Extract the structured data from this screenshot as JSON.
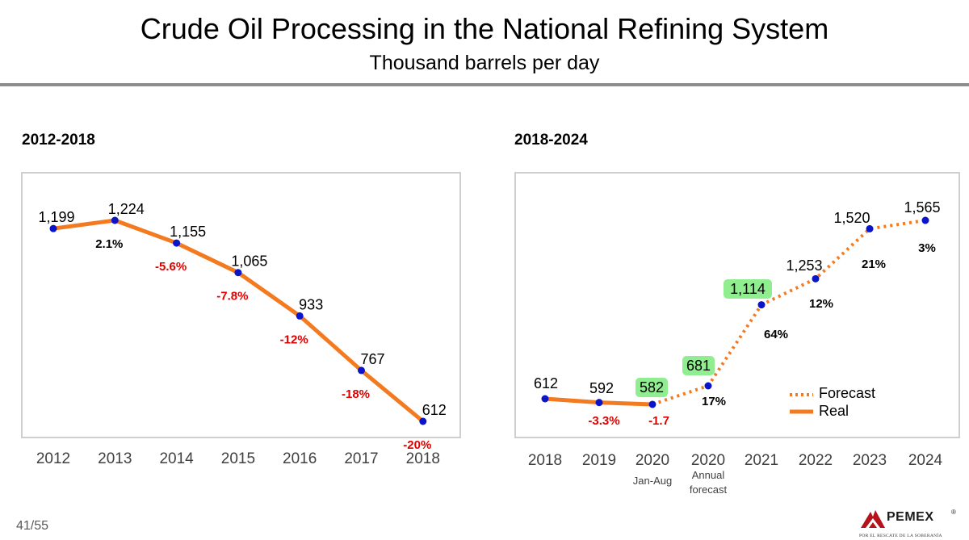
{
  "header": {
    "title": "Crude Oil Processing in the National Refining System",
    "subtitle": "Thousand barrels per day"
  },
  "footer": {
    "page_number": "41/55",
    "logo_text": "PEMEX",
    "logo_registered": "®",
    "logo_tagline": "POR EL RESCATE DE LA SOBERANÍA"
  },
  "colors": {
    "line": "#F47A20",
    "marker": "#0A14C8",
    "negative": "#E00000",
    "highlight": "#90EE90"
  },
  "chart_data": [
    {
      "type": "line",
      "title": "2012-2018",
      "categories": [
        "2012",
        "2013",
        "2014",
        "2015",
        "2016",
        "2017",
        "2018"
      ],
      "series": [
        {
          "name": "Real",
          "values": [
            1199,
            1224,
            1155,
            1065,
            933,
            767,
            612
          ],
          "value_labels": [
            "1,199",
            "1,224",
            "1,155",
            "1,065",
            "933",
            "767",
            "612"
          ]
        }
      ],
      "change_labels": [
        null,
        "2.1%",
        "-5.6%",
        "-7.8%",
        "-12%",
        "-18%",
        "-20%"
      ],
      "ylim": [
        0,
        1400
      ]
    },
    {
      "type": "line",
      "title": "2018-2024",
      "categories": [
        "2018",
        "2019",
        "2020",
        "2020",
        "2021",
        "2022",
        "2023",
        "2024"
      ],
      "category_sublabels": [
        null,
        null,
        "Jan-Aug",
        "Annual forecast",
        null,
        null,
        null,
        null
      ],
      "values": [
        612,
        592,
        582,
        681,
        1114,
        1253,
        1520,
        1565
      ],
      "value_labels": [
        "612",
        "592",
        "582",
        "681",
        "1,114",
        "1,253",
        "1,520",
        "1,565"
      ],
      "highlighted": [
        false,
        false,
        true,
        true,
        true,
        false,
        false,
        false
      ],
      "change_labels": [
        null,
        "-3.3%",
        "-1.7",
        "17%",
        "64%",
        "12%",
        "21%",
        "3%"
      ],
      "series": [
        {
          "name": "Real",
          "style": "solid",
          "points": [
            0,
            1,
            2
          ]
        },
        {
          "name": "Forecast",
          "style": "dotted",
          "points": [
            2,
            3,
            4,
            5,
            6,
            7
          ]
        }
      ],
      "legend": {
        "position": "bottom-right",
        "entries": [
          "Forecast",
          "Real"
        ]
      },
      "ylim": [
        0,
        1700
      ]
    }
  ]
}
